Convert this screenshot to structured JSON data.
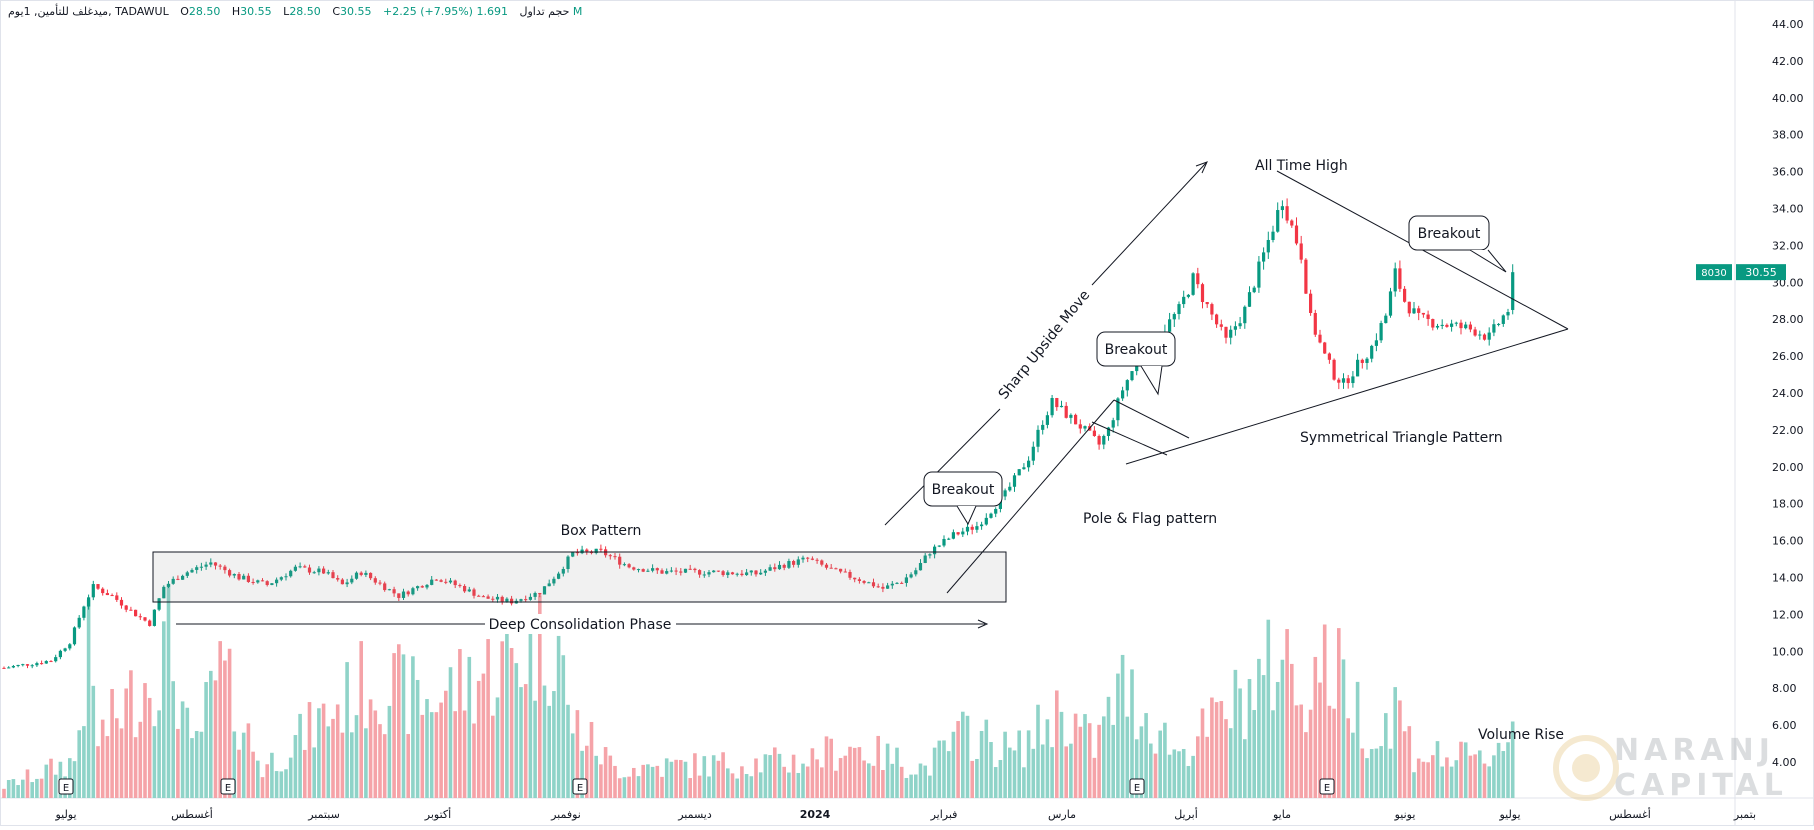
{
  "header": {
    "symbol": "ميدغلف للتأمين, 1يوم, TADAWUL",
    "open_label": "O",
    "open": "28.50",
    "high_label": "H",
    "high": "30.55",
    "low_label": "L",
    "low": "28.50",
    "close_label": "C",
    "close": "30.55",
    "change": "+2.25 (+7.95%)",
    "volume_label": "حجم تداول",
    "volume": "1.691 M"
  },
  "price_tag": {
    "symbol": "8030",
    "price": "30.55",
    "color": "#089981"
  },
  "watermark": {
    "line1": "NARANJ",
    "line2": "CAPITAL"
  },
  "colors": {
    "up": "#089981",
    "down": "#f23645",
    "vol_up": "#8fd3c8",
    "vol_down": "#f5a3a8"
  },
  "chart_data": {
    "type": "candlestick",
    "y_axis": {
      "min": 3.0,
      "max": 45.0,
      "ticks": [
        "44.00",
        "42.00",
        "40.00",
        "38.00",
        "36.00",
        "34.00",
        "32.00",
        "30.00",
        "28.00",
        "26.00",
        "24.00",
        "22.00",
        "20.00",
        "18.00",
        "16.00",
        "14.00",
        "12.00",
        "10.00",
        "8.00",
        "6.00",
        "4.00"
      ]
    },
    "x_axis": {
      "labels": [
        "يوليو",
        "أغسطس",
        "سبتمبر",
        "أكتوبر",
        "نوفمبر",
        "ديسمبر",
        "2024",
        "فبراير",
        "مارس",
        "أبريل",
        "مايو",
        "يونيو",
        "يوليو",
        "أغسطس",
        "بتمبر"
      ]
    },
    "earnings_markers": [
      "E",
      "E",
      "E",
      "E",
      "E"
    ],
    "price_waypoints": [
      [
        0,
        9.1
      ],
      [
        10,
        9.5
      ],
      [
        14,
        10.5
      ],
      [
        17,
        12.5
      ],
      [
        19,
        13.5
      ],
      [
        23,
        13.0
      ],
      [
        28,
        12.0
      ],
      [
        31,
        11.5
      ],
      [
        34,
        13.5
      ],
      [
        38,
        14.2
      ],
      [
        44,
        14.8
      ],
      [
        50,
        14.0
      ],
      [
        56,
        13.6
      ],
      [
        62,
        14.5
      ],
      [
        68,
        14.3
      ],
      [
        72,
        13.6
      ],
      [
        76,
        14.3
      ],
      [
        84,
        13.0
      ],
      [
        92,
        14.0
      ],
      [
        97,
        13.5
      ],
      [
        102,
        12.9
      ],
      [
        108,
        12.7
      ],
      [
        114,
        13.2
      ],
      [
        118,
        14.3
      ],
      [
        121,
        15.3
      ],
      [
        127,
        15.4
      ],
      [
        133,
        14.6
      ],
      [
        140,
        14.3
      ],
      [
        150,
        14.3
      ],
      [
        160,
        14.2
      ],
      [
        166,
        14.7
      ],
      [
        171,
        15.0
      ],
      [
        177,
        14.3
      ],
      [
        182,
        13.9
      ],
      [
        187,
        13.4
      ],
      [
        191,
        13.8
      ],
      [
        194,
        14.4
      ],
      [
        197,
        15.4
      ],
      [
        202,
        16.3
      ],
      [
        207,
        16.8
      ],
      [
        213,
        18.5
      ],
      [
        218,
        20.5
      ],
      [
        221,
        22.5
      ],
      [
        223,
        23.5
      ],
      [
        229,
        22.2
      ],
      [
        233,
        21.2
      ],
      [
        235,
        22.0
      ],
      [
        238,
        24.2
      ],
      [
        242,
        26.2
      ],
      [
        246,
        27.2
      ],
      [
        250,
        28.5
      ],
      [
        253,
        30.2
      ],
      [
        257,
        28.2
      ],
      [
        260,
        26.8
      ],
      [
        264,
        28.5
      ],
      [
        268,
        31.5
      ],
      [
        270,
        33.0
      ],
      [
        272,
        34.5
      ],
      [
        274,
        33.0
      ],
      [
        276,
        31.5
      ],
      [
        278,
        28.0
      ],
      [
        281,
        26.0
      ],
      [
        283,
        25.0
      ],
      [
        285,
        24.5
      ],
      [
        288,
        25.5
      ],
      [
        291,
        26.5
      ],
      [
        294,
        28.2
      ],
      [
        296,
        30.5
      ],
      [
        298,
        29.0
      ],
      [
        301,
        28.0
      ],
      [
        305,
        27.8
      ],
      [
        309,
        27.6
      ],
      [
        313,
        27.4
      ],
      [
        316,
        27.0
      ],
      [
        318,
        27.8
      ],
      [
        320,
        28.5
      ],
      [
        321,
        30.55
      ]
    ],
    "volume_waypoints": [
      [
        0,
        0.8
      ],
      [
        15,
        2.5
      ],
      [
        18,
        9.5
      ],
      [
        20,
        4.0
      ],
      [
        33,
        9.0
      ],
      [
        35,
        10.5
      ],
      [
        37,
        7.5
      ],
      [
        40,
        3.0
      ],
      [
        46,
        8.5
      ],
      [
        55,
        2.0
      ],
      [
        78,
        8.0
      ],
      [
        90,
        6.5
      ],
      [
        118,
        11.0
      ],
      [
        120,
        5.5
      ],
      [
        130,
        2.0
      ],
      [
        170,
        2.5
      ],
      [
        180,
        3.5
      ],
      [
        196,
        2.0
      ],
      [
        205,
        4.5
      ],
      [
        215,
        3.0
      ],
      [
        225,
        6.0
      ],
      [
        232,
        3.5
      ],
      [
        238,
        7.5
      ],
      [
        250,
        3.0
      ],
      [
        268,
        8.0
      ],
      [
        272,
        10.0
      ],
      [
        276,
        7.0
      ],
      [
        280,
        9.0
      ],
      [
        285,
        8.0
      ],
      [
        292,
        3.5
      ],
      [
        296,
        6.5
      ],
      [
        300,
        3.0
      ],
      [
        315,
        2.5
      ],
      [
        321,
        4.8
      ]
    ],
    "annotations": [
      {
        "text": "Box Pattern"
      },
      {
        "text": "Deep Consolidation Phase"
      },
      {
        "text": "Breakout"
      },
      {
        "text": "Sharp Upside Move"
      },
      {
        "text": "Breakout"
      },
      {
        "text": "Pole & Flag pattern"
      },
      {
        "text": "All Time High"
      },
      {
        "text": "Symmetrical Triangle Pattern"
      },
      {
        "text": "Breakout"
      },
      {
        "text": "Volume Rise"
      }
    ]
  }
}
